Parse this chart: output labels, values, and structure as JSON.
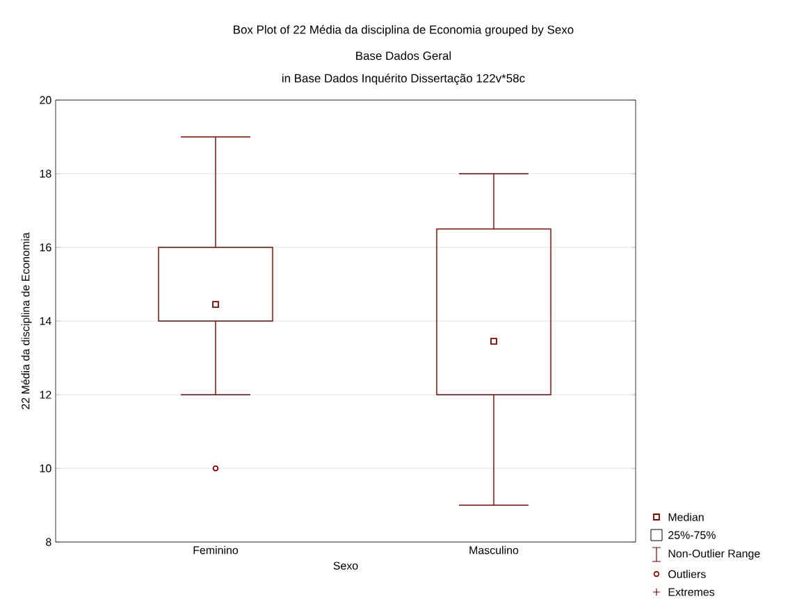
{
  "chart_data": {
    "type": "box",
    "title": "Box Plot of 22 Média da disciplina de Economia grouped by  Sexo",
    "subtitle": "Base Dados Geral",
    "xlabel": "Sexo",
    "ylabel": "22 Média da disciplina de Economia",
    "categories": [
      "Feminino",
      "Masculino"
    ],
    "boxes": [
      {
        "low": 12,
        "q1": 14,
        "median": 14.45,
        "q3": 16,
        "high": 19,
        "outliers": [
          10
        ]
      },
      {
        "low": 9,
        "q1": 12,
        "median": 13.45,
        "q3": 16.5,
        "high": 18
      }
    ],
    "color": "#800000",
    "ylim": [
      8,
      20
    ],
    "yticks": [
      8,
      10,
      12,
      14,
      16,
      18,
      20
    ],
    "grid": "y",
    "annotations": [
      "in Base Dados Inquérito Dissertação 122v*58c",
      "Median",
      "25%-75%",
      "Non-Outlier Range",
      "Outliers",
      "Extremes"
    ]
  }
}
